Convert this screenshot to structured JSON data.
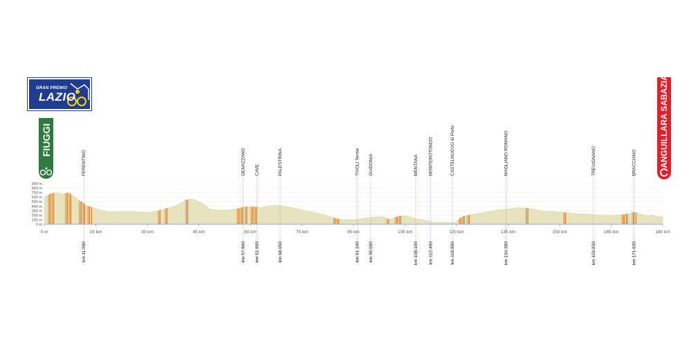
{
  "logo": {
    "line1": "GRAN PREMIO",
    "line2": "LAZIO"
  },
  "start": {
    "name": "FIUGGI",
    "color": "#2e7a3f"
  },
  "finish": {
    "name": "ANGUILLARA SABAZIA",
    "color": "#e0202a"
  },
  "chart_data": {
    "type": "area",
    "title": "",
    "xlabel": "",
    "ylabel": "",
    "xlim": [
      0,
      180
    ],
    "ylim": [
      0,
      900
    ],
    "grid": true,
    "x_ticks": [
      "0 m",
      "15 km",
      "30 km",
      "45 km",
      "60 km",
      "75 km",
      "90 km",
      "105 km",
      "120 km",
      "135 km",
      "150 km",
      "165 km",
      "180 km"
    ],
    "y_ticks": [
      "0 m",
      "100 m",
      "200 m",
      "300 m",
      "400 m",
      "500 m",
      "600 m",
      "700 m",
      "800 m",
      "900 m"
    ],
    "profile": [
      [
        0,
        600
      ],
      [
        1,
        640
      ],
      [
        2,
        680
      ],
      [
        3,
        690
      ],
      [
        4,
        690
      ],
      [
        5,
        670
      ],
      [
        6,
        680
      ],
      [
        7,
        700
      ],
      [
        8,
        650
      ],
      [
        9,
        590
      ],
      [
        10,
        530
      ],
      [
        11.5,
        470
      ],
      [
        12,
        420
      ],
      [
        14,
        370
      ],
      [
        16,
        320
      ],
      [
        18,
        280
      ],
      [
        20,
        270
      ],
      [
        22,
        280
      ],
      [
        24,
        280
      ],
      [
        26,
        280
      ],
      [
        28,
        270
      ],
      [
        30,
        260
      ],
      [
        32,
        280
      ],
      [
        34,
        320
      ],
      [
        36,
        360
      ],
      [
        38,
        400
      ],
      [
        40,
        480
      ],
      [
        41,
        530
      ],
      [
        42,
        550
      ],
      [
        43,
        560
      ],
      [
        44,
        540
      ],
      [
        45,
        500
      ],
      [
        46,
        460
      ],
      [
        47,
        420
      ],
      [
        48,
        340
      ],
      [
        50,
        320
      ],
      [
        52,
        310
      ],
      [
        54,
        320
      ],
      [
        56,
        340
      ],
      [
        57.9,
        380
      ],
      [
        59,
        390
      ],
      [
        61.9,
        380
      ],
      [
        63,
        370
      ],
      [
        65,
        400
      ],
      [
        67,
        420
      ],
      [
        68.65,
        420
      ],
      [
        70,
        390
      ],
      [
        72,
        370
      ],
      [
        74,
        340
      ],
      [
        76,
        300
      ],
      [
        78,
        270
      ],
      [
        80,
        240
      ],
      [
        82,
        200
      ],
      [
        84,
        150
      ],
      [
        86,
        110
      ],
      [
        88,
        100
      ],
      [
        90,
        100
      ],
      [
        91.1,
        110
      ],
      [
        93,
        130
      ],
      [
        95,
        150
      ],
      [
        97,
        170
      ],
      [
        99,
        160
      ],
      [
        100,
        110
      ],
      [
        101,
        120
      ],
      [
        102,
        150
      ],
      [
        103,
        175
      ],
      [
        104,
        185
      ],
      [
        106,
        175
      ],
      [
        108.1,
        125
      ],
      [
        110,
        100
      ],
      [
        112.46,
        55
      ],
      [
        114,
        45
      ],
      [
        116,
        50
      ],
      [
        118.8,
        40
      ],
      [
        120,
        55
      ],
      [
        121,
        140
      ],
      [
        122,
        180
      ],
      [
        124,
        210
      ],
      [
        126,
        240
      ],
      [
        128,
        260
      ],
      [
        130,
        290
      ],
      [
        132,
        320
      ],
      [
        134.39,
        330
      ],
      [
        136,
        350
      ],
      [
        138,
        370
      ],
      [
        140,
        360
      ],
      [
        142,
        340
      ],
      [
        144,
        310
      ],
      [
        146,
        290
      ],
      [
        148,
        280
      ],
      [
        150,
        270
      ],
      [
        152,
        260
      ],
      [
        154,
        240
      ],
      [
        156,
        230
      ],
      [
        158,
        230
      ],
      [
        159.83,
        210
      ],
      [
        162,
        200
      ],
      [
        164,
        200
      ],
      [
        166,
        200
      ],
      [
        168,
        210
      ],
      [
        170,
        230
      ],
      [
        171.63,
        270
      ],
      [
        173,
        240
      ],
      [
        174,
        220
      ],
      [
        175,
        200
      ],
      [
        176,
        180
      ],
      [
        177,
        210
      ],
      [
        178,
        180
      ],
      [
        179,
        170
      ],
      [
        180,
        170
      ]
    ],
    "steep_ranges": [
      [
        1,
        3
      ],
      [
        6,
        8
      ],
      [
        10,
        12
      ],
      [
        12.5,
        14
      ],
      [
        33,
        34
      ],
      [
        35,
        36
      ],
      [
        41,
        42
      ],
      [
        56,
        58
      ],
      [
        58.3,
        59.2
      ],
      [
        60,
        62
      ],
      [
        84,
        86
      ],
      [
        99.5,
        100.5
      ],
      [
        102,
        104
      ],
      [
        120.5,
        122.5
      ],
      [
        123,
        124
      ],
      [
        140,
        141
      ],
      [
        151,
        152
      ],
      [
        168,
        170
      ],
      [
        171,
        172.5
      ]
    ],
    "places": [
      {
        "name": "FERENTINO",
        "km_label": "km 11.500",
        "km": 11.5
      },
      {
        "name": "GENAZZANO",
        "km_label": "km 57.900",
        "km": 57.9
      },
      {
        "name": "CAVE",
        "km_label": "km 61.900",
        "km": 61.9
      },
      {
        "name": "PALESTRINA",
        "km_label": "km 68.650",
        "km": 68.65
      },
      {
        "name": "TIVOLI Terme",
        "km_label": "km 91.100",
        "km": 91.1
      },
      {
        "name": "GUIDONIA",
        "km_label": "km 95.000",
        "km": 95.0
      },
      {
        "name": "MENTANA",
        "km_label": "km 108.100",
        "km": 108.1
      },
      {
        "name": "MONTEROTONDO",
        "km_label": "km 112.460",
        "km": 112.46
      },
      {
        "name": "CASTELNUOVO di Porto",
        "km_label": "km 118.800",
        "km": 118.8
      },
      {
        "name": "MAGLIANO ROMANO",
        "km_label": "km 134.390",
        "km": 134.39
      },
      {
        "name": "TREVIGNANO",
        "km_label": "km 159.830",
        "km": 159.83
      },
      {
        "name": "BRACCIANO",
        "km_label": "km 171.630",
        "km": 171.63
      }
    ],
    "colors": {
      "fill": "#e8e3bf",
      "steep": "#e07a22",
      "steep_light": "#f0b060",
      "marker": "#8a93c8",
      "tick": "#555555"
    }
  }
}
